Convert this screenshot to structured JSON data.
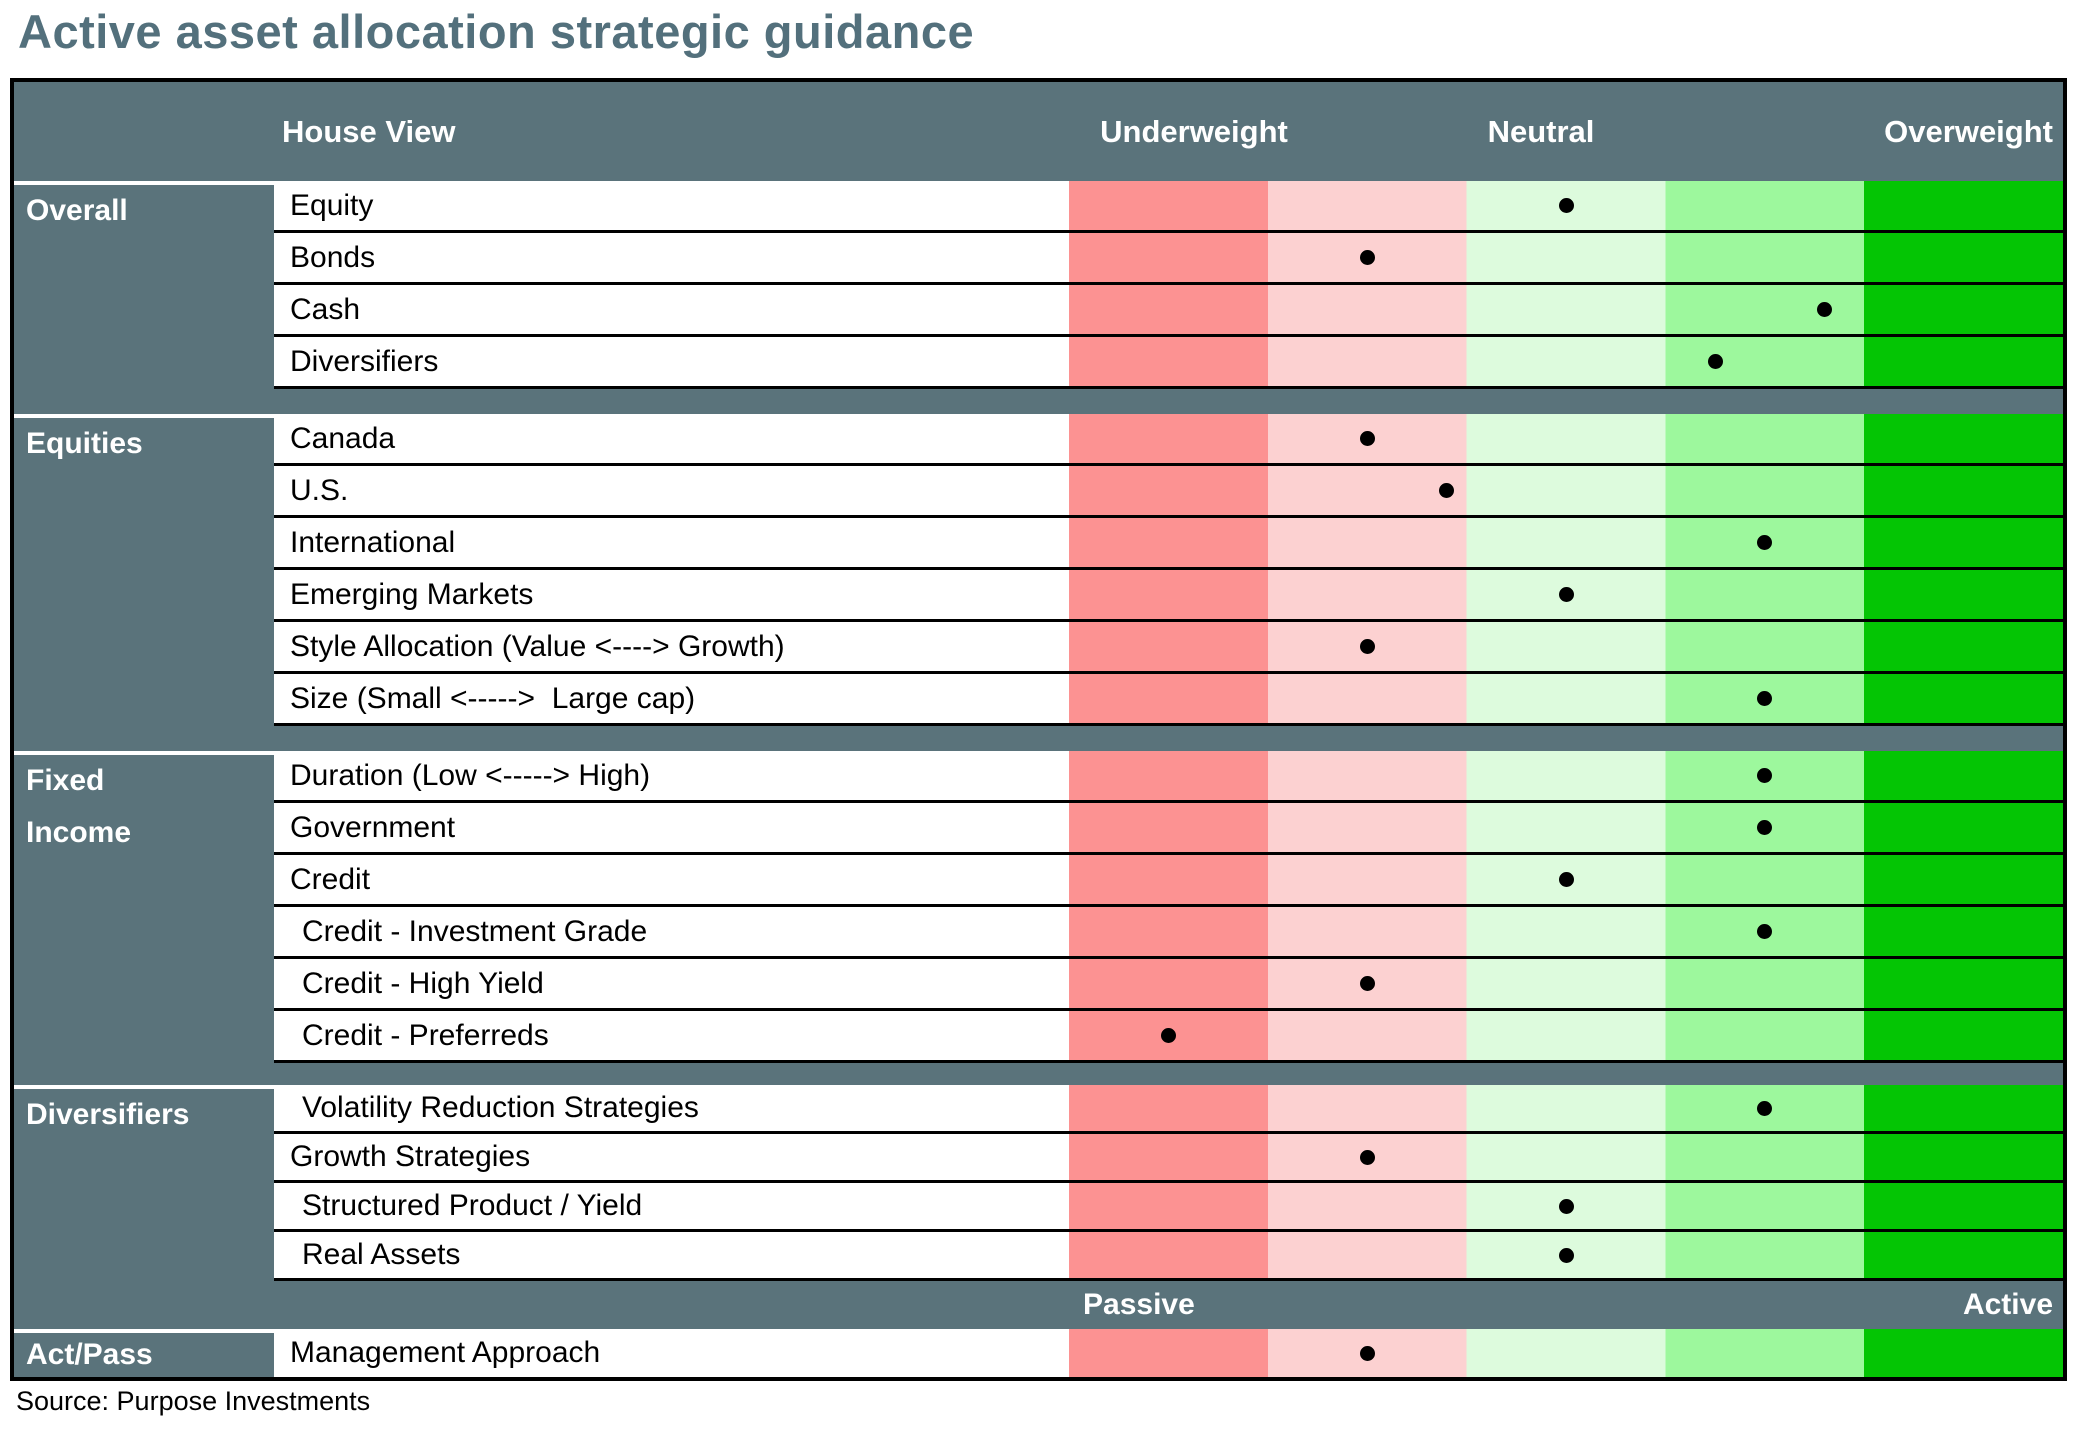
{
  "title": "Active asset allocation strategic guidance",
  "source": "Source: Purpose Investments",
  "header": {
    "house_view": "House View",
    "underweight": "Underweight",
    "neutral": "Neutral",
    "overweight": "Overweight"
  },
  "passive_active_band": {
    "left": "Passive",
    "right": "Active"
  },
  "colors": {
    "slate": "#5a737b",
    "title_color": "#53707c",
    "dot": "#000000",
    "scale_bands": [
      "#fc9292",
      "#fcd1d1",
      "#ddfbdd",
      "#9df89d",
      "#04c504"
    ]
  },
  "chart_data": {
    "type": "table",
    "title": "Active asset allocation strategic guidance",
    "scale": {
      "left_label": "Underweight",
      "center_label": "Neutral",
      "right_label": "Overweight",
      "bands": 5,
      "position_unit": "percent of scale width; 0 = far underweight/passive, 50 = neutral, 100 = far overweight/active"
    },
    "sections": [
      {
        "label_lines": [
          "Overall"
        ],
        "after": "separator",
        "rows": [
          {
            "name": "Equity",
            "position_pct": 50
          },
          {
            "name": "Bonds",
            "position_pct": 30
          },
          {
            "name": "Cash",
            "position_pct": 76
          },
          {
            "name": "Diversifiers",
            "position_pct": 65
          }
        ]
      },
      {
        "label_lines": [
          "Equities"
        ],
        "after": "separator",
        "rows": [
          {
            "name": "Canada",
            "position_pct": 30
          },
          {
            "name": "U.S.",
            "position_pct": 38
          },
          {
            "name": "International",
            "position_pct": 70
          },
          {
            "name": "Emerging Markets",
            "position_pct": 50
          },
          {
            "name": "Style Allocation (Value <----> Growth)",
            "position_pct": 30
          },
          {
            "name": "Size (Small <----->  Large cap)",
            "position_pct": 70
          }
        ]
      },
      {
        "label_lines": [
          "Fixed",
          "Income"
        ],
        "after": "separator",
        "rows": [
          {
            "name": "Duration (Low <-----> High)",
            "position_pct": 70
          },
          {
            "name": "Government",
            "position_pct": 70
          },
          {
            "name": "Credit",
            "position_pct": 50
          },
          {
            "name": "Credit - Investment Grade",
            "position_pct": 70,
            "indent": true
          },
          {
            "name": "Credit - High Yield",
            "position_pct": 30,
            "indent": true
          },
          {
            "name": "Credit - Preferreds",
            "position_pct": 10,
            "indent": true
          }
        ]
      },
      {
        "label_lines": [
          "Diversifiers"
        ],
        "after": "passive_active_band",
        "rows": [
          {
            "name": "Volatility Reduction Strategies",
            "position_pct": 70,
            "indent": true
          },
          {
            "name": "Growth Strategies",
            "position_pct": 30
          },
          {
            "name": "Structured Product / Yield",
            "position_pct": 50,
            "indent": true
          },
          {
            "name": "Real Assets",
            "position_pct": 50,
            "indent": true
          }
        ]
      },
      {
        "label_lines": [
          "Act/Pass"
        ],
        "after": "end",
        "rows": [
          {
            "name": "Management Approach",
            "position_pct": 30
          }
        ]
      }
    ]
  }
}
